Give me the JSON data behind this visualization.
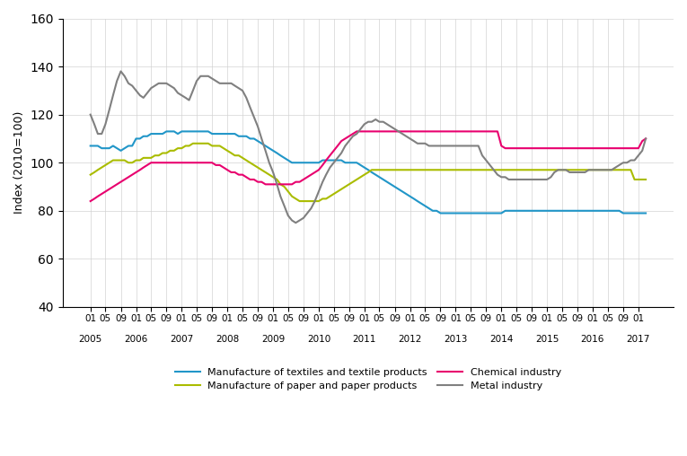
{
  "title": "",
  "ylabel": "Index (2010=100)",
  "ylim": [
    40,
    160
  ],
  "yticks": [
    40,
    60,
    80,
    100,
    120,
    140,
    160
  ],
  "colors": {
    "textiles": "#2196C8",
    "paper": "#AABC00",
    "chemical": "#E8006E",
    "metal": "#808080"
  },
  "legend": [
    "Manufacture of textiles and textile products",
    "Manufacture of paper and paper products",
    "Chemical industry",
    "Metal industry"
  ],
  "textiles": [
    107,
    107,
    107,
    106,
    106,
    106,
    107,
    106,
    105,
    106,
    107,
    107,
    110,
    110,
    111,
    111,
    112,
    112,
    112,
    112,
    113,
    113,
    113,
    112,
    113,
    113,
    113,
    113,
    113,
    113,
    113,
    113,
    112,
    112,
    112,
    112,
    112,
    112,
    112,
    111,
    111,
    111,
    110,
    110,
    109,
    108,
    107,
    106,
    105,
    104,
    103,
    102,
    101,
    100,
    100,
    100,
    100,
    100,
    100,
    100,
    100,
    101,
    101,
    101,
    101,
    101,
    101,
    100,
    100,
    100,
    100,
    99,
    98,
    97,
    96,
    95,
    94,
    93,
    92,
    91,
    90,
    89,
    88,
    87,
    86,
    85,
    84,
    83,
    82,
    81,
    80,
    80,
    79,
    79,
    79,
    79,
    79,
    79,
    79,
    79,
    79,
    79,
    79,
    79,
    79,
    79,
    79,
    79,
    79,
    80,
    80,
    80,
    80,
    80,
    80,
    80,
    80,
    80,
    80,
    80,
    80,
    80,
    80,
    80,
    80,
    80,
    80,
    80,
    80,
    80,
    80,
    80,
    80,
    80,
    80,
    80,
    80,
    80,
    80,
    80,
    79,
    79,
    79,
    79,
    79,
    79,
    79
  ],
  "paper": [
    95,
    96,
    97,
    98,
    99,
    100,
    101,
    101,
    101,
    101,
    100,
    100,
    101,
    101,
    102,
    102,
    102,
    103,
    103,
    104,
    104,
    105,
    105,
    106,
    106,
    107,
    107,
    108,
    108,
    108,
    108,
    108,
    107,
    107,
    107,
    106,
    105,
    104,
    103,
    103,
    102,
    101,
    100,
    99,
    98,
    97,
    96,
    95,
    94,
    93,
    91,
    90,
    88,
    86,
    85,
    84,
    84,
    84,
    84,
    84,
    84,
    85,
    85,
    86,
    87,
    88,
    89,
    90,
    91,
    92,
    93,
    94,
    95,
    96,
    97,
    97,
    97,
    97,
    97,
    97,
    97,
    97,
    97,
    97,
    97,
    97,
    97,
    97,
    97,
    97,
    97,
    97,
    97,
    97,
    97,
    97,
    97,
    97,
    97,
    97,
    97,
    97,
    97,
    97,
    97,
    97,
    97,
    97,
    97,
    97,
    97,
    97,
    97,
    97,
    97,
    97,
    97,
    97,
    97,
    97,
    97,
    97,
    97,
    97,
    97,
    97,
    97,
    97,
    97,
    97,
    97,
    97,
    97,
    97,
    97,
    97,
    97,
    97,
    97,
    97,
    97,
    97,
    97,
    93,
    93,
    93,
    93
  ],
  "chemical": [
    84,
    85,
    86,
    87,
    88,
    89,
    90,
    91,
    92,
    93,
    94,
    95,
    96,
    97,
    98,
    99,
    100,
    100,
    100,
    100,
    100,
    100,
    100,
    100,
    100,
    100,
    100,
    100,
    100,
    100,
    100,
    100,
    100,
    99,
    99,
    98,
    97,
    96,
    96,
    95,
    95,
    94,
    93,
    93,
    92,
    92,
    91,
    91,
    91,
    91,
    91,
    91,
    91,
    91,
    92,
    92,
    93,
    94,
    95,
    96,
    97,
    99,
    101,
    103,
    105,
    107,
    109,
    110,
    111,
    112,
    113,
    113,
    113,
    113,
    113,
    113,
    113,
    113,
    113,
    113,
    113,
    113,
    113,
    113,
    113,
    113,
    113,
    113,
    113,
    113,
    113,
    113,
    113,
    113,
    113,
    113,
    113,
    113,
    113,
    113,
    113,
    113,
    113,
    113,
    113,
    113,
    113,
    113,
    107,
    106,
    106,
    106,
    106,
    106,
    106,
    106,
    106,
    106,
    106,
    106,
    106,
    106,
    106,
    106,
    106,
    106,
    106,
    106,
    106,
    106,
    106,
    106,
    106,
    106,
    106,
    106,
    106,
    106,
    106,
    106,
    106,
    106,
    106,
    106,
    106,
    109,
    110
  ],
  "metal": [
    120,
    116,
    112,
    112,
    116,
    122,
    128,
    134,
    138,
    136,
    133,
    132,
    130,
    128,
    127,
    129,
    131,
    132,
    133,
    133,
    133,
    132,
    131,
    129,
    128,
    127,
    126,
    130,
    134,
    136,
    136,
    136,
    135,
    134,
    133,
    133,
    133,
    133,
    132,
    131,
    130,
    127,
    123,
    119,
    115,
    110,
    105,
    100,
    96,
    91,
    86,
    82,
    78,
    76,
    75,
    76,
    77,
    79,
    81,
    84,
    88,
    92,
    95,
    98,
    100,
    102,
    104,
    107,
    109,
    111,
    112,
    114,
    116,
    117,
    117,
    118,
    117,
    117,
    116,
    115,
    114,
    113,
    112,
    111,
    110,
    109,
    108,
    108,
    108,
    107,
    107,
    107,
    107,
    107,
    107,
    107,
    107,
    107,
    107,
    107,
    107,
    107,
    107,
    103,
    101,
    99,
    97,
    95,
    94,
    94,
    93,
    93,
    93,
    93,
    93,
    93,
    93,
    93,
    93,
    93,
    93,
    94,
    96,
    97,
    97,
    97,
    96,
    96,
    96,
    96,
    96,
    97,
    97,
    97,
    97,
    97,
    97,
    97,
    98,
    99,
    100,
    100,
    101,
    101,
    103,
    105,
    110
  ],
  "start_year": 2005,
  "start_month": 1,
  "n_points": 147
}
